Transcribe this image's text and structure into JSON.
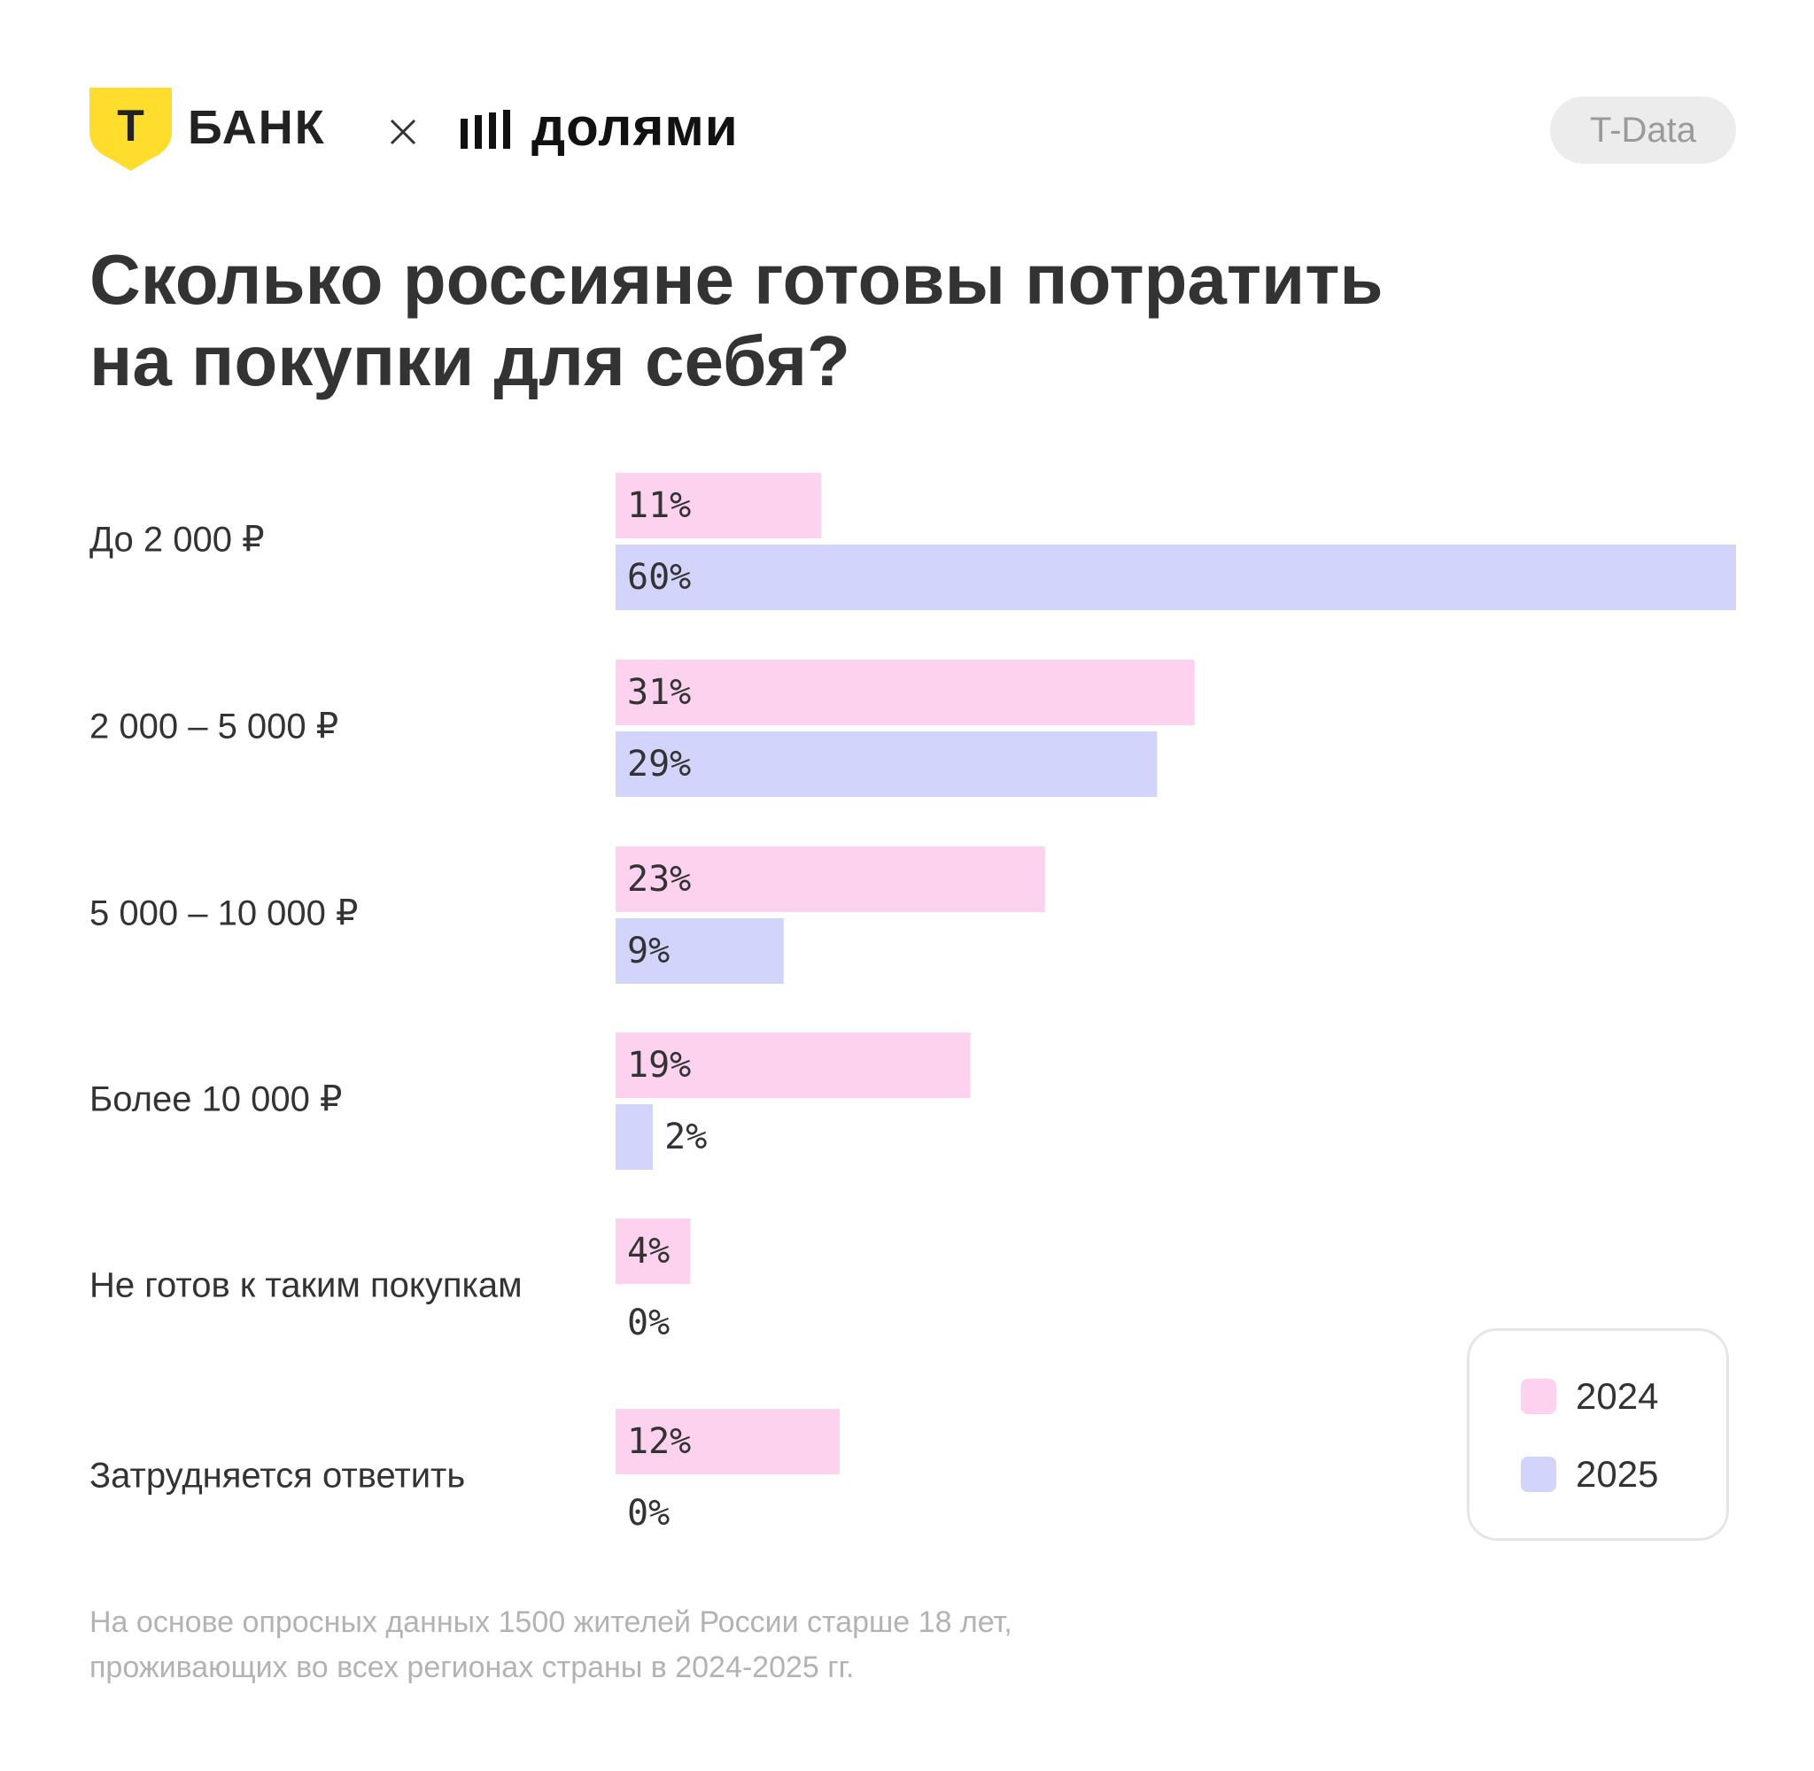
{
  "header": {
    "brand_left": "БАНК",
    "brand_left_letter": "Т",
    "separator": "×",
    "brand_right": "долями",
    "badge": "T-Data"
  },
  "title": {
    "line1": "Сколько россияне готовы потратить",
    "line2": "на покупки для себя?"
  },
  "colors": {
    "brand_yellow": "#FFDD2D",
    "series_2024": "#FDD2EE",
    "series_2025": "#D2D4FC",
    "text": "#333333",
    "muted": "#B3B3B3"
  },
  "chart_data": {
    "type": "bar",
    "orientation": "horizontal",
    "categories": [
      "До 2 000 ₽",
      "2 000 – 5 000 ₽",
      "5 000 – 10 000 ₽",
      "Более 10 000 ₽",
      "Не готов к таким покупкам",
      "Затрудняется ответить"
    ],
    "series": [
      {
        "name": "2024",
        "values": [
          11,
          31,
          23,
          19,
          4,
          12
        ],
        "labels": [
          "11%",
          "31%",
          "23%",
          "19%",
          "4%",
          "12%"
        ]
      },
      {
        "name": "2025",
        "values": [
          60,
          29,
          9,
          2,
          0,
          0
        ],
        "labels": [
          "60%",
          "29%",
          "9%",
          "2%",
          "0%",
          "0%"
        ]
      }
    ],
    "xlim": [
      0,
      60
    ],
    "unit": "%",
    "legend_position": "bottom-right",
    "grid": false
  },
  "legend": {
    "items": [
      {
        "label": "2024"
      },
      {
        "label": "2025"
      }
    ]
  },
  "footnote": {
    "line1": "На основе опросных данных 1500 жителей России старше 18 лет,",
    "line2": "проживающих во всех регионах страны в 2024-2025 гг."
  }
}
